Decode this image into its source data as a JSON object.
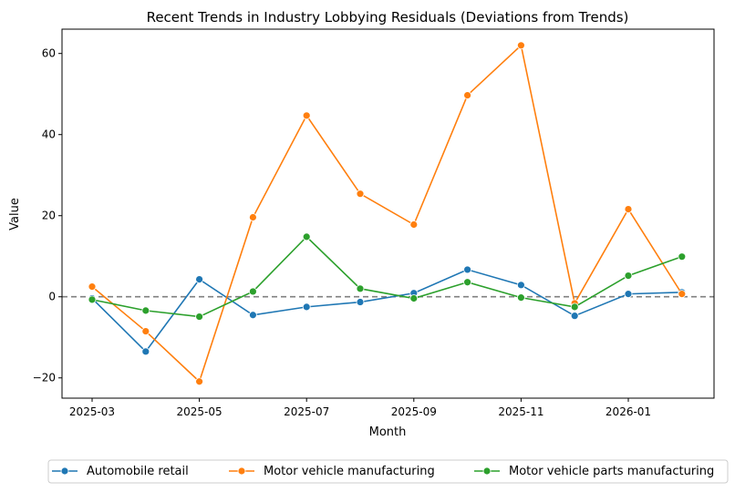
{
  "chart_data": {
    "type": "line",
    "title": "Recent Trends in Industry Lobbying Residuals (Deviations from Trends)",
    "xlabel": "Month",
    "ylabel": "Value",
    "x": [
      "2025-03",
      "2025-04",
      "2025-05",
      "2025-06",
      "2025-07",
      "2025-08",
      "2025-09",
      "2025-10",
      "2025-11",
      "2025-12",
      "2026-01",
      "2026-02"
    ],
    "xticks": [
      "2025-03",
      "2025-05",
      "2025-07",
      "2025-09",
      "2025-11",
      "2026-01"
    ],
    "yticks": [
      -20,
      0,
      20,
      40,
      60
    ],
    "ylim": [
      -25,
      66
    ],
    "reference_line": 0,
    "grid": false,
    "legend_placement": "bottom",
    "series": [
      {
        "name": "Automobile retail",
        "color": "#1f77b4",
        "values": [
          -0.4,
          -13.5,
          4.3,
          -4.5,
          -2.5,
          -1.3,
          0.9,
          6.7,
          2.9,
          -4.7,
          0.7,
          1.1
        ]
      },
      {
        "name": "Motor vehicle manufacturing",
        "color": "#ff7f0e",
        "values": [
          2.5,
          -8.5,
          -20.9,
          19.6,
          44.7,
          25.4,
          17.8,
          49.7,
          62.0,
          -1.6,
          21.6,
          0.7
        ]
      },
      {
        "name": "Motor vehicle parts manufacturing",
        "color": "#2ca02c",
        "values": [
          -0.7,
          -3.4,
          -4.9,
          1.3,
          14.8,
          2.0,
          -0.4,
          3.6,
          -0.2,
          -2.5,
          5.2,
          9.9
        ]
      }
    ]
  }
}
